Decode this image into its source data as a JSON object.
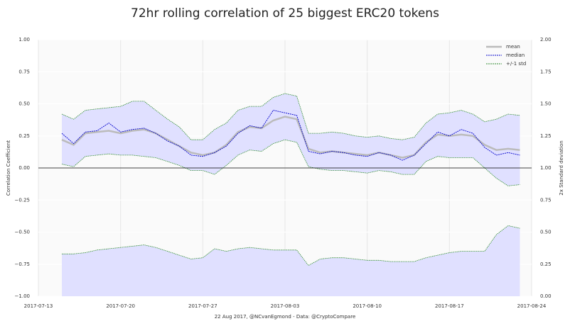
{
  "chart_data": {
    "type": "line",
    "title": "72hr rolling correlation of 25 biggest ERC20 tokens",
    "x_label": "22 Aug 2017, @NCvanEgmond - Data: @CryptoCompare",
    "y_label": "Correlation Coefficient",
    "y2_label": "2x Standard deviation",
    "x": [
      "2017-07-15",
      "2017-07-16",
      "2017-07-17",
      "2017-07-18",
      "2017-07-19",
      "2017-07-20",
      "2017-07-21",
      "2017-07-22",
      "2017-07-23",
      "2017-07-24",
      "2017-07-25",
      "2017-07-26",
      "2017-07-27",
      "2017-07-28",
      "2017-07-29",
      "2017-07-30",
      "2017-07-31",
      "2017-08-01",
      "2017-08-02",
      "2017-08-03",
      "2017-08-04",
      "2017-08-05",
      "2017-08-06",
      "2017-08-07",
      "2017-08-08",
      "2017-08-09",
      "2017-08-10",
      "2017-08-11",
      "2017-08-12",
      "2017-08-13",
      "2017-08-14",
      "2017-08-15",
      "2017-08-16",
      "2017-08-17",
      "2017-08-18",
      "2017-08-19",
      "2017-08-20",
      "2017-08-21",
      "2017-08-22",
      "2017-08-23"
    ],
    "series": [
      {
        "name": "mean",
        "color": "#bbbbbb",
        "values": [
          0.22,
          0.18,
          0.27,
          0.28,
          0.29,
          0.27,
          0.29,
          0.3,
          0.27,
          0.22,
          0.17,
          0.12,
          0.1,
          0.12,
          0.18,
          0.28,
          0.32,
          0.31,
          0.37,
          0.4,
          0.38,
          0.15,
          0.12,
          0.13,
          0.12,
          0.11,
          0.1,
          0.12,
          0.1,
          0.08,
          0.1,
          0.2,
          0.26,
          0.25,
          0.26,
          0.25,
          0.18,
          0.14,
          0.15,
          0.14
        ]
      },
      {
        "name": "median",
        "color": "#0000cc",
        "values": [
          0.27,
          0.19,
          0.28,
          0.29,
          0.35,
          0.28,
          0.3,
          0.31,
          0.27,
          0.21,
          0.17,
          0.1,
          0.09,
          0.12,
          0.17,
          0.27,
          0.33,
          0.31,
          0.45,
          0.43,
          0.41,
          0.13,
          0.11,
          0.13,
          0.12,
          0.1,
          0.09,
          0.12,
          0.1,
          0.06,
          0.1,
          0.19,
          0.28,
          0.25,
          0.3,
          0.27,
          0.16,
          0.1,
          0.12,
          0.1
        ]
      },
      {
        "name": "+/-1 std",
        "color": "#2e8b2e",
        "fill": "#e0e0ff",
        "upper": [
          0.42,
          0.38,
          0.45,
          0.46,
          0.47,
          0.48,
          0.52,
          0.52,
          0.45,
          0.38,
          0.32,
          0.22,
          0.22,
          0.3,
          0.35,
          0.45,
          0.48,
          0.48,
          0.55,
          0.58,
          0.56,
          0.27,
          0.27,
          0.28,
          0.27,
          0.25,
          0.24,
          0.25,
          0.23,
          0.22,
          0.24,
          0.35,
          0.42,
          0.43,
          0.45,
          0.42,
          0.36,
          0.38,
          0.42,
          0.41
        ],
        "lower": [
          0.03,
          0.01,
          0.09,
          0.1,
          0.11,
          0.1,
          0.1,
          0.09,
          0.08,
          0.05,
          0.02,
          -0.02,
          -0.02,
          -0.05,
          0.02,
          0.1,
          0.14,
          0.13,
          0.19,
          0.22,
          0.2,
          0.01,
          -0.01,
          -0.02,
          -0.02,
          -0.03,
          -0.04,
          -0.02,
          -0.03,
          -0.05,
          -0.05,
          0.05,
          0.09,
          0.08,
          0.08,
          0.08,
          0.0,
          -0.08,
          -0.14,
          -0.13
        ]
      },
      {
        "color": "#2e8b2e",
        "fill": "#e0e0ff",
        "axis": "y2",
        "values": [
          0.33,
          0.33,
          0.34,
          0.36,
          0.37,
          0.38,
          0.39,
          0.4,
          0.38,
          0.35,
          0.32,
          0.29,
          0.3,
          0.37,
          0.35,
          0.37,
          0.38,
          0.37,
          0.36,
          0.36,
          0.36,
          0.24,
          0.29,
          0.3,
          0.3,
          0.29,
          0.28,
          0.28,
          0.27,
          0.27,
          0.27,
          0.3,
          0.32,
          0.34,
          0.35,
          0.35,
          0.35,
          0.48,
          0.55,
          0.53
        ]
      }
    ],
    "xlim": [
      "2017-07-13",
      "2017-08-24"
    ],
    "xticks": [
      "2017-07-13",
      "2017-07-20",
      "2017-07-27",
      "2017-08-03",
      "2017-08-10",
      "2017-08-17",
      "2017-08-24"
    ],
    "ylim": [
      -1,
      1
    ],
    "yticks": [
      {
        "value": -1,
        "label": "−1.00"
      },
      {
        "value": -0.75,
        "label": "−0.75"
      },
      {
        "value": -0.5,
        "label": "−0.50"
      },
      {
        "value": -0.25,
        "label": "−0.25"
      },
      {
        "value": 0,
        "label": "0.00"
      },
      {
        "value": 0.25,
        "label": "0.25"
      },
      {
        "value": 0.5,
        "label": "0.50"
      },
      {
        "value": 0.75,
        "label": "0.75"
      },
      {
        "value": 1,
        "label": "1.00"
      }
    ],
    "y2lim": [
      0,
      2
    ],
    "y2ticks": [
      {
        "value": 0,
        "label": "0.00"
      },
      {
        "value": 0.25,
        "label": "0.25"
      },
      {
        "value": 0.5,
        "label": "0.50"
      },
      {
        "value": 0.75,
        "label": "0.75"
      },
      {
        "value": 1,
        "label": "1.00"
      },
      {
        "value": 1.25,
        "label": "1.25"
      },
      {
        "value": 1.5,
        "label": "1.50"
      },
      {
        "value": 1.75,
        "label": "1.75"
      },
      {
        "value": 2,
        "label": "2.00"
      }
    ],
    "grid": true,
    "legend": "upper right"
  }
}
